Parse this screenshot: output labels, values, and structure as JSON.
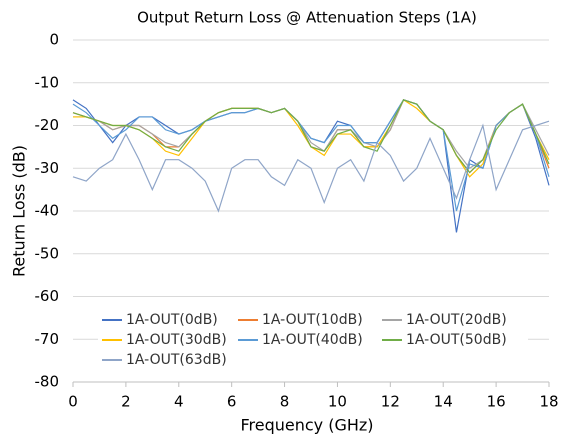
{
  "chart_data": {
    "type": "line",
    "title": "Output Return Loss @ Attenuation Steps (1A)",
    "xlabel": "Frequency (GHz)",
    "ylabel": "Return Loss (dB)",
    "x": [
      0,
      0.5,
      1,
      1.5,
      2,
      2.5,
      3,
      3.5,
      4,
      4.5,
      5,
      5.5,
      6,
      6.5,
      7,
      7.5,
      8,
      8.5,
      9,
      9.5,
      10,
      10.5,
      11,
      11.5,
      12,
      12.5,
      13,
      13.5,
      14,
      14.5,
      15,
      15.5,
      16,
      16.5,
      17,
      17.5,
      18
    ],
    "series": [
      {
        "name": "1A-OUT(0dB)",
        "color": "#4472c4",
        "values": [
          -14,
          -16,
          -20,
          -24,
          -20,
          -18,
          -18,
          -20,
          -22,
          -21,
          -19,
          -18,
          -17,
          -17,
          -16,
          -17,
          -16,
          -19,
          -23,
          -24,
          -19,
          -20,
          -24,
          -24,
          -19,
          -14,
          -15,
          -19,
          -21,
          -45,
          -28,
          -30,
          -20,
          -17,
          -15,
          -23,
          -34
        ]
      },
      {
        "name": "1A-OUT(10dB)",
        "color": "#ed7d31",
        "values": [
          -17,
          -18,
          -19,
          -21,
          -20,
          -20,
          -22,
          -25,
          -25,
          -22,
          -19,
          -17,
          -16,
          -16,
          -16,
          -17,
          -16,
          -19,
          -25,
          -26,
          -21,
          -21,
          -25,
          -25,
          -21,
          -14,
          -15,
          -19,
          -21,
          -27,
          -31,
          -28,
          -20,
          -17,
          -15,
          -22,
          -30
        ]
      },
      {
        "name": "1A-OUT(20dB)",
        "color": "#a5a5a5",
        "values": [
          -18,
          -18,
          -19,
          -21,
          -20,
          -20,
          -22,
          -24,
          -25,
          -22,
          -19,
          -17,
          -16,
          -16,
          -16,
          -17,
          -16,
          -19,
          -24,
          -26,
          -21,
          -21,
          -24,
          -25,
          -21,
          -14,
          -15,
          -19,
          -21,
          -26,
          -30,
          -28,
          -20,
          -17,
          -15,
          -21,
          -27
        ]
      },
      {
        "name": "1A-OUT(30dB)",
        "color": "#ffc000",
        "values": [
          -18,
          -18,
          -19,
          -20,
          -20,
          -21,
          -23,
          -26,
          -27,
          -23,
          -19,
          -17,
          -16,
          -16,
          -16,
          -17,
          -16,
          -20,
          -25,
          -27,
          -22,
          -22,
          -25,
          -25,
          -20,
          -14,
          -16,
          -19,
          -21,
          -27,
          -32,
          -29,
          -20,
          -17,
          -15,
          -22,
          -28
        ]
      },
      {
        "name": "1A-OUT(40dB)",
        "color": "#5b9bd5",
        "values": [
          -15,
          -17,
          -20,
          -23,
          -21,
          -18,
          -18,
          -21,
          -22,
          -21,
          -19,
          -18,
          -17,
          -17,
          -16,
          -17,
          -16,
          -19,
          -23,
          -24,
          -20,
          -20,
          -24,
          -24,
          -19,
          -14,
          -15,
          -19,
          -21,
          -40,
          -29,
          -30,
          -20,
          -17,
          -15,
          -22,
          -32
        ]
      },
      {
        "name": "1A-OUT(50dB)",
        "color": "#70ad47",
        "values": [
          -17,
          -18,
          -19,
          -20,
          -20,
          -21,
          -23,
          -25,
          -26,
          -22,
          -19,
          -17,
          -16,
          -16,
          -16,
          -17,
          -16,
          -19,
          -25,
          -26,
          -22,
          -21,
          -25,
          -26,
          -20,
          -14,
          -15,
          -19,
          -21,
          -27,
          -31,
          -28,
          -21,
          -17,
          -15,
          -22,
          -29
        ]
      },
      {
        "name": "1A-OUT(63dB)",
        "color": "#8fa5c8",
        "values": [
          -32,
          -33,
          -30,
          -28,
          -22,
          -28,
          -35,
          -28,
          -28,
          -30,
          -33,
          -40,
          -30,
          -28,
          -28,
          -32,
          -34,
          -28,
          -30,
          -38,
          -30,
          -28,
          -33,
          -24,
          -27,
          -33,
          -30,
          -23,
          -30,
          -37,
          -28,
          -20,
          -35,
          -28,
          -21,
          -20,
          -19
        ]
      }
    ],
    "xlim": [
      0,
      18
    ],
    "xticks": [
      0,
      2,
      4,
      6,
      8,
      10,
      12,
      14,
      16,
      18
    ],
    "ylim": [
      -80,
      0
    ],
    "yticks": [
      -80,
      -70,
      -60,
      -50,
      -40,
      -30,
      -20,
      -10,
      0
    ],
    "grid": true,
    "legend": "bottom"
  }
}
